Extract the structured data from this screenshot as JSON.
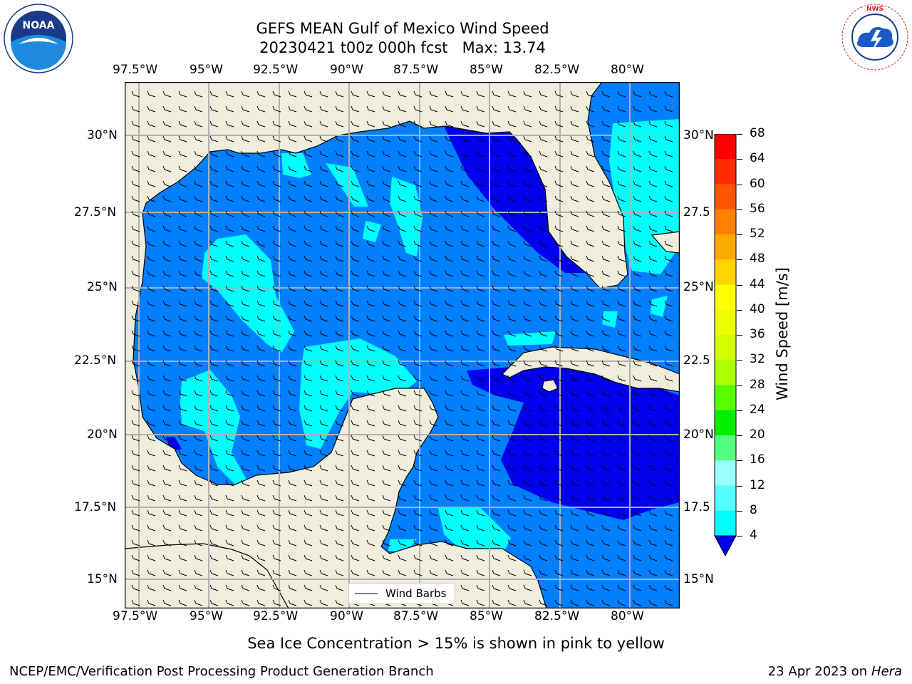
{
  "title": {
    "line1": "GEFS MEAN Gulf of Mexico Wind Speed",
    "line2": "20230421 t00z 000h fcst   Max: 13.74"
  },
  "logos": {
    "left": {
      "icon": "noaa-logo",
      "text": "NOAA"
    },
    "right": {
      "icon": "nws-logo",
      "text": "NATIONAL WEATHER SERVICE"
    }
  },
  "axes": {
    "lon_labels": [
      "97.5°W",
      "95°W",
      "92.5°W",
      "90°W",
      "87.5°W",
      "85°W",
      "82.5°W",
      "80°W"
    ],
    "lat_labels_left": [
      "30°N",
      "27.5°N",
      "25°N",
      "22.5°N",
      "20°N",
      "17.5°N",
      "15°N"
    ],
    "lat_labels_right": [
      "30°N",
      "27.5",
      "25°N",
      "22.5",
      "20°N",
      "17.5",
      "15°N"
    ]
  },
  "legend": {
    "label": "Wind Barbs"
  },
  "colorbar": {
    "title": "Wind Speed [m/s]",
    "ticks": [
      "68",
      "64",
      "60",
      "56",
      "52",
      "48",
      "44",
      "40",
      "36",
      "32",
      "28",
      "24",
      "20",
      "16",
      "12",
      "8",
      "4"
    ],
    "colors": [
      "#ff0000",
      "#ff2a00",
      "#ff5500",
      "#ff7f00",
      "#ffaa00",
      "#ffd400",
      "#ffff00",
      "#eaff00",
      "#d4ff00",
      "#aaff00",
      "#55ff00",
      "#00ee00",
      "#55ff7f",
      "#99ffff",
      "#55ffff",
      "#00ffff",
      "#007fff"
    ],
    "under_color": "#0000ee"
  },
  "map_colors": {
    "land": "#efeddc",
    "speed_4_8": "#007fff",
    "speed_8_12": "#00ffff",
    "speed_lt_4": "#0000ee"
  },
  "note": "Sea Ice Concentration > 15% is shown in pink to yellow",
  "footer": {
    "left": "NCEP/EMC/Verification Post Processing Product Generation Branch",
    "right_date": "23 Apr 2023 on ",
    "right_machine": "Hera"
  }
}
